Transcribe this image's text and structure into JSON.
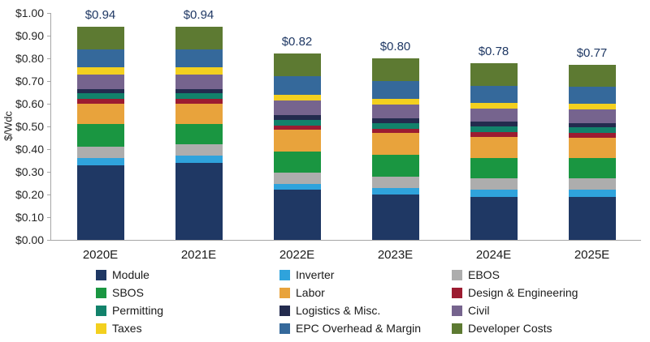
{
  "chart_data": {
    "type": "bar",
    "stacked": true,
    "title": "",
    "xlabel": "",
    "ylabel": "$/Wdc",
    "ylim": [
      0,
      1.0
    ],
    "grid": false,
    "legend_position": "bottom",
    "yticks": [
      "$1.00",
      "$0.90",
      "$0.80",
      "$0.70",
      "$0.60",
      "$0.50",
      "$0.40",
      "$0.30",
      "$0.20",
      "$0.10",
      "$0.00"
    ],
    "categories": [
      "2020E",
      "2021E",
      "2022E",
      "2023E",
      "2024E",
      "2025E"
    ],
    "totals": [
      "$0.94",
      "$0.94",
      "$0.82",
      "$0.80",
      "$0.78",
      "$0.77"
    ],
    "series": [
      {
        "name": "Module",
        "color": "#1F3864",
        "values": [
          0.33,
          0.34,
          0.22,
          0.2,
          0.19,
          0.19
        ]
      },
      {
        "name": "Inverter",
        "color": "#2FA3DC",
        "values": [
          0.03,
          0.03,
          0.025,
          0.03,
          0.03,
          0.03
        ]
      },
      {
        "name": "EBOS",
        "color": "#ADADAD",
        "values": [
          0.05,
          0.05,
          0.05,
          0.05,
          0.05,
          0.05
        ]
      },
      {
        "name": "SBOS",
        "color": "#1A9641",
        "values": [
          0.1,
          0.09,
          0.095,
          0.095,
          0.09,
          0.09
        ]
      },
      {
        "name": "Labor",
        "color": "#E8A33C",
        "values": [
          0.09,
          0.09,
          0.095,
          0.095,
          0.095,
          0.09
        ]
      },
      {
        "name": "Design & Engineering",
        "color": "#9C1C31",
        "values": [
          0.02,
          0.02,
          0.02,
          0.02,
          0.02,
          0.02
        ]
      },
      {
        "name": "Permitting",
        "color": "#12826B",
        "values": [
          0.025,
          0.025,
          0.025,
          0.025,
          0.025,
          0.025
        ]
      },
      {
        "name": "Logistics & Misc.",
        "color": "#232B4E",
        "values": [
          0.02,
          0.02,
          0.02,
          0.02,
          0.02,
          0.02
        ]
      },
      {
        "name": "Civil",
        "color": "#76648E",
        "values": [
          0.065,
          0.065,
          0.065,
          0.06,
          0.06,
          0.06
        ]
      },
      {
        "name": "Taxes",
        "color": "#F3D01F",
        "values": [
          0.03,
          0.03,
          0.025,
          0.025,
          0.025,
          0.025
        ]
      },
      {
        "name": "EPC Overhead & Margin",
        "color": "#35699B",
        "values": [
          0.08,
          0.08,
          0.08,
          0.08,
          0.075,
          0.075
        ]
      },
      {
        "name": "Developer Costs",
        "color": "#5D7A32",
        "values": [
          0.1,
          0.1,
          0.1,
          0.1,
          0.1,
          0.095
        ]
      }
    ]
  }
}
